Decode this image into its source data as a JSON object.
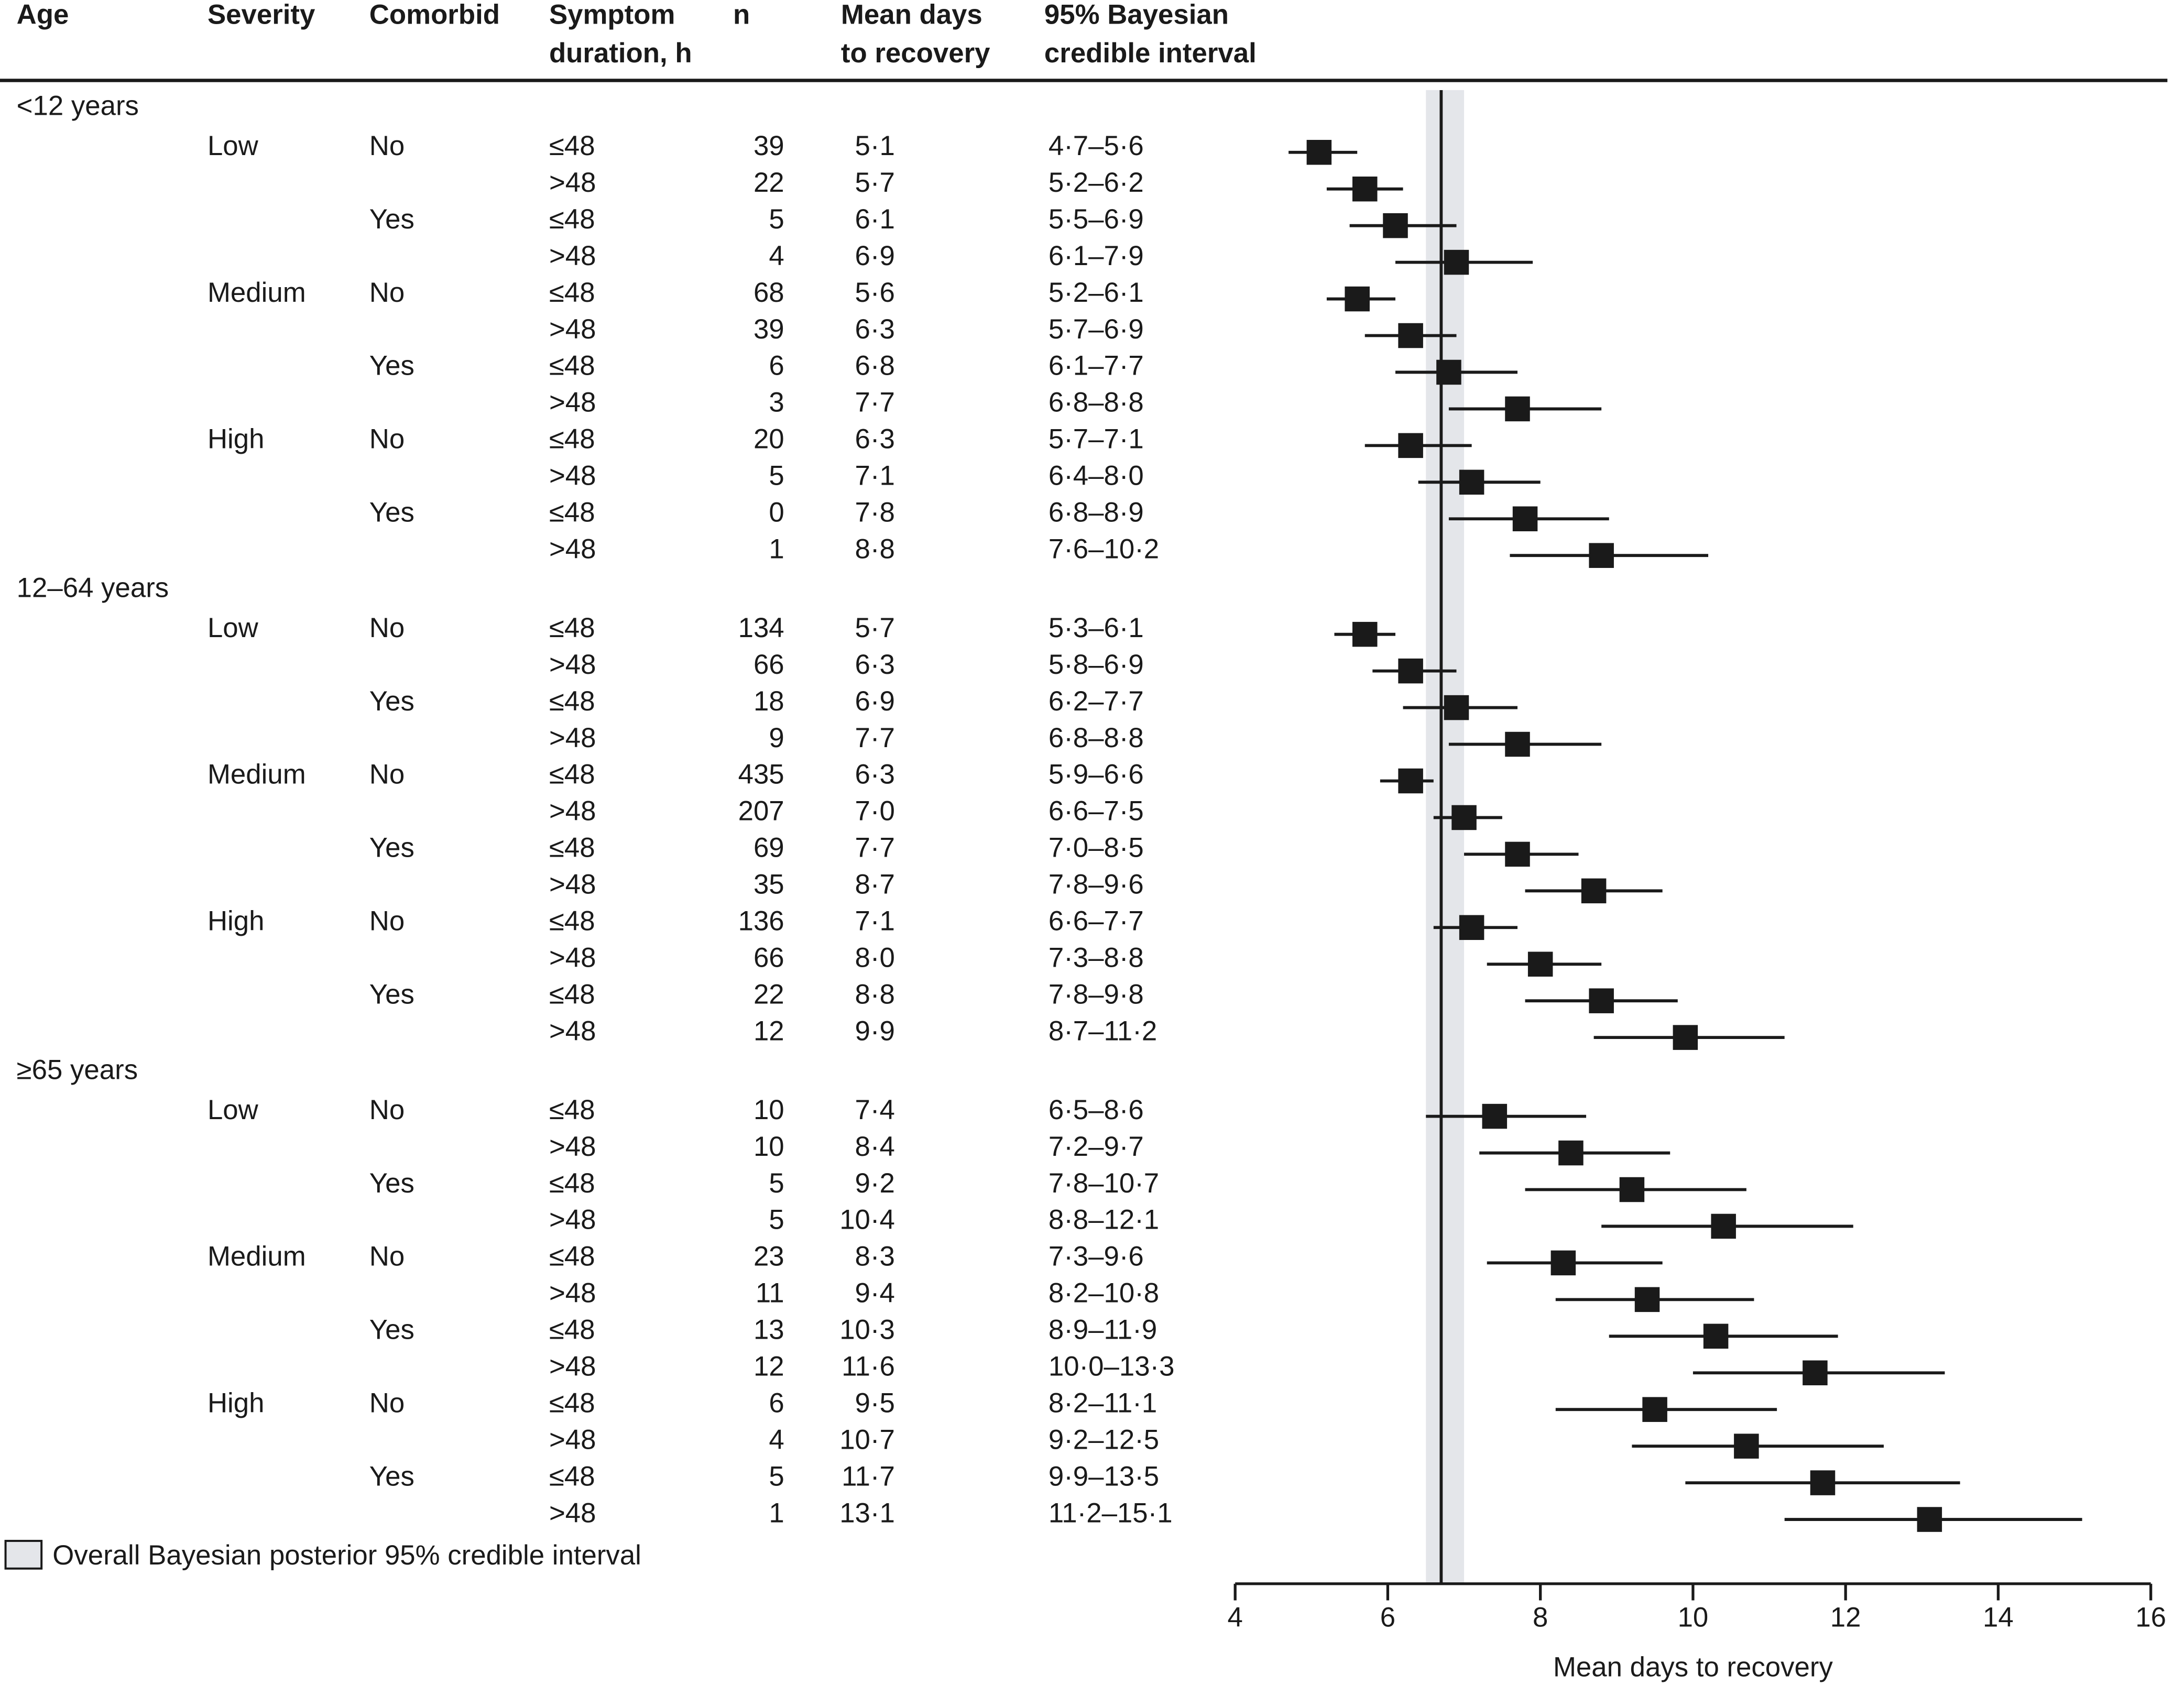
{
  "columns": {
    "age": "Age",
    "severity": "Severity",
    "comorbid": "Comorbid",
    "duration_1": "Symptom",
    "duration_2": "duration, h",
    "n": "n",
    "mean_1": "Mean days",
    "mean_2": "to recovery",
    "ci_1": "95% Bayesian",
    "ci_2": "credible interval"
  },
  "legend_label": "Overall Bayesian posterior 95% credible interval",
  "colors": {
    "band": "#e4e6ea",
    "ink": "#1a1a1a"
  },
  "chart_data": {
    "type": "scatter",
    "xlabel": "Mean days to recovery",
    "xlim": [
      4,
      16
    ],
    "xticks": [
      4,
      6,
      8,
      10,
      12,
      14,
      16
    ],
    "overall": {
      "mean": 6.7,
      "ci": [
        6.5,
        7.0
      ]
    },
    "groups": [
      {
        "age": "<12 years",
        "severities": [
          {
            "label": "Low",
            "comorbid": [
              {
                "label": "No",
                "rows": [
                  {
                    "duration": "≤48",
                    "n": 39,
                    "mean": 5.1,
                    "ci": [
                      4.7,
                      5.6
                    ],
                    "mean_label": "5·1",
                    "ci_label": "4·7–5·6"
                  },
                  {
                    "duration": ">48",
                    "n": 22,
                    "mean": 5.7,
                    "ci": [
                      5.2,
                      6.2
                    ],
                    "mean_label": "5·7",
                    "ci_label": "5·2–6·2"
                  }
                ]
              },
              {
                "label": "Yes",
                "rows": [
                  {
                    "duration": "≤48",
                    "n": 5,
                    "mean": 6.1,
                    "ci": [
                      5.5,
                      6.9
                    ],
                    "mean_label": "6·1",
                    "ci_label": "5·5–6·9"
                  },
                  {
                    "duration": ">48",
                    "n": 4,
                    "mean": 6.9,
                    "ci": [
                      6.1,
                      7.9
                    ],
                    "mean_label": "6·9",
                    "ci_label": "6·1–7·9"
                  }
                ]
              }
            ]
          },
          {
            "label": "Medium",
            "comorbid": [
              {
                "label": "No",
                "rows": [
                  {
                    "duration": "≤48",
                    "n": 68,
                    "mean": 5.6,
                    "ci": [
                      5.2,
                      6.1
                    ],
                    "mean_label": "5·6",
                    "ci_label": "5·2–6·1"
                  },
                  {
                    "duration": ">48",
                    "n": 39,
                    "mean": 6.3,
                    "ci": [
                      5.7,
                      6.9
                    ],
                    "mean_label": "6·3",
                    "ci_label": "5·7–6·9"
                  }
                ]
              },
              {
                "label": "Yes",
                "rows": [
                  {
                    "duration": "≤48",
                    "n": 6,
                    "mean": 6.8,
                    "ci": [
                      6.1,
                      7.7
                    ],
                    "mean_label": "6·8",
                    "ci_label": "6·1–7·7"
                  },
                  {
                    "duration": ">48",
                    "n": 3,
                    "mean": 7.7,
                    "ci": [
                      6.8,
                      8.8
                    ],
                    "mean_label": "7·7",
                    "ci_label": "6·8–8·8"
                  }
                ]
              }
            ]
          },
          {
            "label": "High",
            "comorbid": [
              {
                "label": "No",
                "rows": [
                  {
                    "duration": "≤48",
                    "n": 20,
                    "mean": 6.3,
                    "ci": [
                      5.7,
                      7.1
                    ],
                    "mean_label": "6·3",
                    "ci_label": "5·7–7·1"
                  },
                  {
                    "duration": ">48",
                    "n": 5,
                    "mean": 7.1,
                    "ci": [
                      6.4,
                      8.0
                    ],
                    "mean_label": "7·1",
                    "ci_label": "6·4–8·0"
                  }
                ]
              },
              {
                "label": "Yes",
                "rows": [
                  {
                    "duration": "≤48",
                    "n": 0,
                    "mean": 7.8,
                    "ci": [
                      6.8,
                      8.9
                    ],
                    "mean_label": "7·8",
                    "ci_label": "6·8–8·9"
                  },
                  {
                    "duration": ">48",
                    "n": 1,
                    "mean": 8.8,
                    "ci": [
                      7.6,
                      10.2
                    ],
                    "mean_label": "8·8",
                    "ci_label": "7·6–10·2"
                  }
                ]
              }
            ]
          }
        ]
      },
      {
        "age": "12–64 years",
        "severities": [
          {
            "label": "Low",
            "comorbid": [
              {
                "label": "No",
                "rows": [
                  {
                    "duration": "≤48",
                    "n": 134,
                    "mean": 5.7,
                    "ci": [
                      5.3,
                      6.1
                    ],
                    "mean_label": "5·7",
                    "ci_label": "5·3–6·1"
                  },
                  {
                    "duration": ">48",
                    "n": 66,
                    "mean": 6.3,
                    "ci": [
                      5.8,
                      6.9
                    ],
                    "mean_label": "6·3",
                    "ci_label": "5·8–6·9"
                  }
                ]
              },
              {
                "label": "Yes",
                "rows": [
                  {
                    "duration": "≤48",
                    "n": 18,
                    "mean": 6.9,
                    "ci": [
                      6.2,
                      7.7
                    ],
                    "mean_label": "6·9",
                    "ci_label": "6·2–7·7"
                  },
                  {
                    "duration": ">48",
                    "n": 9,
                    "mean": 7.7,
                    "ci": [
                      6.8,
                      8.8
                    ],
                    "mean_label": "7·7",
                    "ci_label": "6·8–8·8"
                  }
                ]
              }
            ]
          },
          {
            "label": "Medium",
            "comorbid": [
              {
                "label": "No",
                "rows": [
                  {
                    "duration": "≤48",
                    "n": 435,
                    "mean": 6.3,
                    "ci": [
                      5.9,
                      6.6
                    ],
                    "mean_label": "6·3",
                    "ci_label": "5·9–6·6"
                  },
                  {
                    "duration": ">48",
                    "n": 207,
                    "mean": 7.0,
                    "ci": [
                      6.6,
                      7.5
                    ],
                    "mean_label": "7·0",
                    "ci_label": "6·6–7·5"
                  }
                ]
              },
              {
                "label": "Yes",
                "rows": [
                  {
                    "duration": "≤48",
                    "n": 69,
                    "mean": 7.7,
                    "ci": [
                      7.0,
                      8.5
                    ],
                    "mean_label": "7·7",
                    "ci_label": "7·0–8·5"
                  },
                  {
                    "duration": ">48",
                    "n": 35,
                    "mean": 8.7,
                    "ci": [
                      7.8,
                      9.6
                    ],
                    "mean_label": "8·7",
                    "ci_label": "7·8–9·6"
                  }
                ]
              }
            ]
          },
          {
            "label": "High",
            "comorbid": [
              {
                "label": "No",
                "rows": [
                  {
                    "duration": "≤48",
                    "n": 136,
                    "mean": 7.1,
                    "ci": [
                      6.6,
                      7.7
                    ],
                    "mean_label": "7·1",
                    "ci_label": "6·6–7·7"
                  },
                  {
                    "duration": ">48",
                    "n": 66,
                    "mean": 8.0,
                    "ci": [
                      7.3,
                      8.8
                    ],
                    "mean_label": "8·0",
                    "ci_label": "7·3–8·8"
                  }
                ]
              },
              {
                "label": "Yes",
                "rows": [
                  {
                    "duration": "≤48",
                    "n": 22,
                    "mean": 8.8,
                    "ci": [
                      7.8,
                      9.8
                    ],
                    "mean_label": "8·8",
                    "ci_label": "7·8–9·8"
                  },
                  {
                    "duration": ">48",
                    "n": 12,
                    "mean": 9.9,
                    "ci": [
                      8.7,
                      11.2
                    ],
                    "mean_label": "9·9",
                    "ci_label": "8·7–11·2"
                  }
                ]
              }
            ]
          }
        ]
      },
      {
        "age": "≥65 years",
        "severities": [
          {
            "label": "Low",
            "comorbid": [
              {
                "label": "No",
                "rows": [
                  {
                    "duration": "≤48",
                    "n": 10,
                    "mean": 7.4,
                    "ci": [
                      6.5,
                      8.6
                    ],
                    "mean_label": "7·4",
                    "ci_label": "6·5–8·6"
                  },
                  {
                    "duration": ">48",
                    "n": 10,
                    "mean": 8.4,
                    "ci": [
                      7.2,
                      9.7
                    ],
                    "mean_label": "8·4",
                    "ci_label": "7·2–9·7"
                  }
                ]
              },
              {
                "label": "Yes",
                "rows": [
                  {
                    "duration": "≤48",
                    "n": 5,
                    "mean": 9.2,
                    "ci": [
                      7.8,
                      10.7
                    ],
                    "mean_label": "9·2",
                    "ci_label": "7·8–10·7"
                  },
                  {
                    "duration": ">48",
                    "n": 5,
                    "mean": 10.4,
                    "ci": [
                      8.8,
                      12.1
                    ],
                    "mean_label": "10·4",
                    "ci_label": "8·8–12·1"
                  }
                ]
              }
            ]
          },
          {
            "label": "Medium",
            "comorbid": [
              {
                "label": "No",
                "rows": [
                  {
                    "duration": "≤48",
                    "n": 23,
                    "mean": 8.3,
                    "ci": [
                      7.3,
                      9.6
                    ],
                    "mean_label": "8·3",
                    "ci_label": "7·3–9·6"
                  },
                  {
                    "duration": ">48",
                    "n": 11,
                    "mean": 9.4,
                    "ci": [
                      8.2,
                      10.8
                    ],
                    "mean_label": "9·4",
                    "ci_label": "8·2–10·8"
                  }
                ]
              },
              {
                "label": "Yes",
                "rows": [
                  {
                    "duration": "≤48",
                    "n": 13,
                    "mean": 10.3,
                    "ci": [
                      8.9,
                      11.9
                    ],
                    "mean_label": "10·3",
                    "ci_label": "8·9–11·9"
                  },
                  {
                    "duration": ">48",
                    "n": 12,
                    "mean": 11.6,
                    "ci": [
                      10.0,
                      13.3
                    ],
                    "mean_label": "11·6",
                    "ci_label": "10·0–13·3"
                  }
                ]
              }
            ]
          },
          {
            "label": "High",
            "comorbid": [
              {
                "label": "No",
                "rows": [
                  {
                    "duration": "≤48",
                    "n": 6,
                    "mean": 9.5,
                    "ci": [
                      8.2,
                      11.1
                    ],
                    "mean_label": "9·5",
                    "ci_label": "8·2–11·1"
                  },
                  {
                    "duration": ">48",
                    "n": 4,
                    "mean": 10.7,
                    "ci": [
                      9.2,
                      12.5
                    ],
                    "mean_label": "10·7",
                    "ci_label": "9·2–12·5"
                  }
                ]
              },
              {
                "label": "Yes",
                "rows": [
                  {
                    "duration": "≤48",
                    "n": 5,
                    "mean": 11.7,
                    "ci": [
                      9.9,
                      13.5
                    ],
                    "mean_label": "11·7",
                    "ci_label": "9·9–13·5"
                  },
                  {
                    "duration": ">48",
                    "n": 1,
                    "mean": 13.1,
                    "ci": [
                      11.2,
                      15.1
                    ],
                    "mean_label": "13·1",
                    "ci_label": "11·2–15·1"
                  }
                ]
              }
            ]
          }
        ]
      }
    ]
  }
}
